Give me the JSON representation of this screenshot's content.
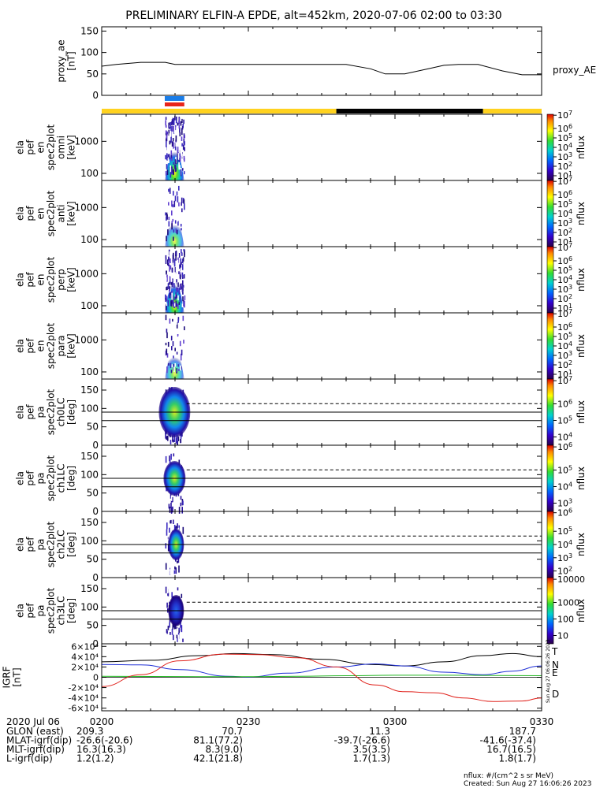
{
  "title": "PRELIMINARY ELFIN-A EPDE, alt=452km, 2020-07-06 02:00 to 03:30",
  "colors": {
    "ae_line": "#000000",
    "sunlight": "#ffd21f",
    "shadow": "#000000",
    "bar_blue": "#1a7de8",
    "bar_red": "#e8241a",
    "grf_T": "#000000",
    "grf_N": "#1f2fd6",
    "grf_E": "#1fb51f",
    "grf_D": "#e0201a"
  },
  "time_axis": {
    "start_label": "2020 Jul 06",
    "ticks": [
      "0200",
      "0230",
      "0300",
      "0330"
    ],
    "tick_minutes": [
      0,
      30,
      60,
      90
    ],
    "range_minutes": [
      0,
      90
    ]
  },
  "orbit_table": [
    {
      "label": "GLON (east)",
      "values": [
        "209.3",
        "70.7",
        "11.3",
        "187.7"
      ]
    },
    {
      "label": "MLAT-igrf(dip)",
      "values": [
        "-26.6(-20.6)",
        "81.1(77.2)",
        "-39.7(-26.6)",
        "-41.6(-37.4)"
      ]
    },
    {
      "label": "MLT-igrf(dip)",
      "values": [
        "16.3(16.3)",
        "8.3(9.0)",
        "3.5(3.5)",
        "16.7(16.5)"
      ]
    },
    {
      "label": "L-igrf(dip)",
      "values": [
        "1.2(1.2)",
        "42.1(21.8)",
        "1.7(1.3)",
        "1.8(1.7)"
      ]
    }
  ],
  "footer": {
    "units": "nflux: #/(cm^2 s sr MeV)",
    "created": "Created: Sun Aug 27 16:06:26 2023",
    "stamp": "Sun Aug 27 06:06:26 2023"
  },
  "chart_data": [
    {
      "type": "line",
      "name": "proxy_ae",
      "ylabel": [
        "proxy_ae",
        "[nT]"
      ],
      "legend": "proxy_AE",
      "ylim": [
        0,
        160
      ],
      "yticks": [
        0,
        50,
        100,
        150
      ],
      "x": [
        0,
        3,
        8,
        13,
        15,
        20,
        30,
        40,
        50,
        55,
        58,
        62,
        66,
        70,
        73,
        77,
        82,
        86,
        90
      ],
      "y": [
        68,
        72,
        77,
        77,
        72,
        72,
        72,
        72,
        72,
        62,
        50,
        50,
        60,
        70,
        72,
        72,
        57,
        48,
        48
      ]
    },
    {
      "type": "area",
      "name": "spacecraft-status-bars",
      "blue_bar_minutes": [
        12.9,
        16.9
      ],
      "red_bar_minutes": [
        12.9,
        16.9
      ],
      "sunlight_minutes": [
        [
          0,
          48
        ],
        [
          78,
          90
        ]
      ],
      "shadow_minutes": [
        [
          48,
          78
        ]
      ]
    },
    {
      "type": "heatmap",
      "ylabel": [
        "ela",
        "pef",
        "en",
        "spec2plot",
        "omni",
        "[keV]"
      ],
      "yscale": "log",
      "ylim": [
        60,
        7000
      ],
      "yticks": [
        100,
        1000
      ],
      "ytick_labels": [
        "100",
        "1000"
      ],
      "x_active_minutes": [
        12.9,
        16.9
      ],
      "colorbar": {
        "label": "nflux",
        "scale": "log",
        "ticks": [
          "10^1",
          "10^2",
          "10^3",
          "10^4",
          "10^5",
          "10^6",
          "10^7"
        ]
      }
    },
    {
      "type": "heatmap",
      "ylabel": [
        "ela",
        "pef",
        "en",
        "spec2plot",
        "anti",
        "[keV]"
      ],
      "yscale": "log",
      "ylim": [
        60,
        7000
      ],
      "yticks": [
        100,
        1000
      ],
      "ytick_labels": [
        "100",
        "1000"
      ],
      "x_active_minutes": [
        12.9,
        16.9
      ],
      "colorbar": {
        "label": "nflux",
        "scale": "log",
        "ticks": [
          "10^1",
          "10^2",
          "10^3",
          "10^4",
          "10^5",
          "10^6",
          "10^7"
        ]
      }
    },
    {
      "type": "heatmap",
      "ylabel": [
        "ela",
        "pef",
        "en",
        "spec2plot",
        "perp",
        "[keV]"
      ],
      "yscale": "log",
      "ylim": [
        60,
        7000
      ],
      "yticks": [
        100,
        1000
      ],
      "ytick_labels": [
        "100",
        "1000"
      ],
      "x_active_minutes": [
        12.9,
        16.9
      ],
      "colorbar": {
        "label": "nflux",
        "scale": "log",
        "ticks": [
          "10^1",
          "10^2",
          "10^3",
          "10^4",
          "10^5",
          "10^6",
          "10^7"
        ]
      }
    },
    {
      "type": "heatmap",
      "ylabel": [
        "ela",
        "pef",
        "en",
        "spec2plot",
        "para",
        "[keV]"
      ],
      "yscale": "log",
      "ylim": [
        60,
        7000
      ],
      "yticks": [
        100,
        1000
      ],
      "ytick_labels": [
        "100",
        "1000"
      ],
      "x_active_minutes": [
        12.9,
        16.9
      ],
      "colorbar": {
        "label": "nflux",
        "scale": "log",
        "ticks": [
          "10^1",
          "10^2",
          "10^3",
          "10^4",
          "10^5",
          "10^6",
          "10^7"
        ]
      }
    },
    {
      "type": "heatmap",
      "ylabel": [
        "ela",
        "pef",
        "pa",
        "spec2plot",
        "ch0LC",
        "[deg]"
      ],
      "ylim": [
        0,
        180
      ],
      "yticks": [
        0,
        50,
        100,
        150
      ],
      "ytick_labels": [
        "0",
        "50",
        "100",
        "150"
      ],
      "x_active_minutes": [
        12.9,
        16.9
      ],
      "lines_deg": [
        90,
        67
      ],
      "dashed_deg": 113,
      "colorbar": {
        "label": "nflux",
        "scale": "log",
        "ticks": [
          "10^4",
          "10^5",
          "10^6",
          "10^7"
        ]
      }
    },
    {
      "type": "heatmap",
      "ylabel": [
        "ela",
        "pef",
        "pa",
        "spec2plot",
        "ch1LC",
        "[deg]"
      ],
      "ylim": [
        0,
        180
      ],
      "yticks": [
        0,
        50,
        100,
        150
      ],
      "ytick_labels": [
        "0",
        "50",
        "100",
        "150"
      ],
      "x_active_minutes": [
        12.9,
        16.9
      ],
      "lines_deg": [
        90,
        67
      ],
      "dashed_deg": 113,
      "colorbar": {
        "label": "nflux",
        "scale": "log",
        "ticks": [
          "10^3",
          "10^4",
          "10^5",
          "10^6"
        ]
      }
    },
    {
      "type": "heatmap",
      "ylabel": [
        "ela",
        "pef",
        "pa",
        "spec2plot",
        "ch2LC",
        "[deg]"
      ],
      "ylim": [
        0,
        180
      ],
      "yticks": [
        0,
        50,
        100,
        150
      ],
      "ytick_labels": [
        "0",
        "50",
        "100",
        "150"
      ],
      "x_active_minutes": [
        12.9,
        16.9
      ],
      "lines_deg": [
        90,
        67
      ],
      "dashed_deg": 113,
      "colorbar": {
        "label": "nflux",
        "scale": "log",
        "ticks": [
          "10^2",
          "10^3",
          "10^4",
          "10^5",
          "10^6"
        ]
      }
    },
    {
      "type": "heatmap",
      "ylabel": [
        "ela",
        "pef",
        "pa",
        "spec2plot",
        "ch3LC",
        "[deg]"
      ],
      "ylim": [
        0,
        180
      ],
      "yticks": [
        0,
        50,
        100,
        150
      ],
      "ytick_labels": [
        "0",
        "50",
        "100",
        "150"
      ],
      "x_active_minutes": [
        12.9,
        16.9
      ],
      "lines_deg": [
        90,
        67
      ],
      "dashed_deg": 113,
      "colorbar": {
        "label": "nflux",
        "scale": "linear-log",
        "ticks": [
          "10",
          "100",
          "1000",
          "10000"
        ]
      }
    },
    {
      "type": "line",
      "name": "IGRF",
      "ylabel": [
        "IGRF",
        "[nT]"
      ],
      "ylim": [
        -65000,
        65000
      ],
      "yticks": [
        -60000,
        -40000,
        -20000,
        0,
        20000,
        40000,
        60000
      ],
      "ytick_labels": [
        "-6×10⁴",
        "-4×10⁴",
        "-2×10⁴",
        "0",
        "2×10⁴",
        "4×10⁴",
        "6×10⁴"
      ],
      "legend": [
        "T",
        "N",
        "E",
        "D"
      ],
      "series": [
        {
          "name": "T",
          "x": [
            0,
            10,
            20,
            27,
            35,
            45,
            55,
            62,
            70,
            78,
            84,
            90
          ],
          "y": [
            30000,
            33000,
            42000,
            46000,
            44000,
            35000,
            25000,
            22000,
            30000,
            42000,
            46000,
            40000
          ]
        },
        {
          "name": "N",
          "x": [
            0,
            8,
            16,
            26,
            30,
            38,
            48,
            56,
            62,
            70,
            78,
            84,
            90
          ],
          "y": [
            25000,
            24000,
            15000,
            2000,
            500,
            8000,
            20000,
            26000,
            22000,
            10000,
            5000,
            12000,
            22000
          ]
        },
        {
          "name": "E",
          "x": [
            0,
            10,
            20,
            30,
            40,
            50,
            60,
            70,
            80,
            90
          ],
          "y": [
            2000,
            1500,
            1200,
            1000,
            2000,
            3000,
            4000,
            4000,
            3500,
            3000
          ]
        },
        {
          "name": "D",
          "x": [
            0,
            8,
            16,
            25,
            32,
            40,
            48,
            56,
            62,
            68,
            74,
            80,
            86,
            90
          ],
          "y": [
            -18000,
            5000,
            32000,
            45000,
            44000,
            38000,
            20000,
            -15000,
            -28000,
            -30000,
            -40000,
            -47000,
            -46000,
            -40000
          ]
        }
      ]
    }
  ]
}
